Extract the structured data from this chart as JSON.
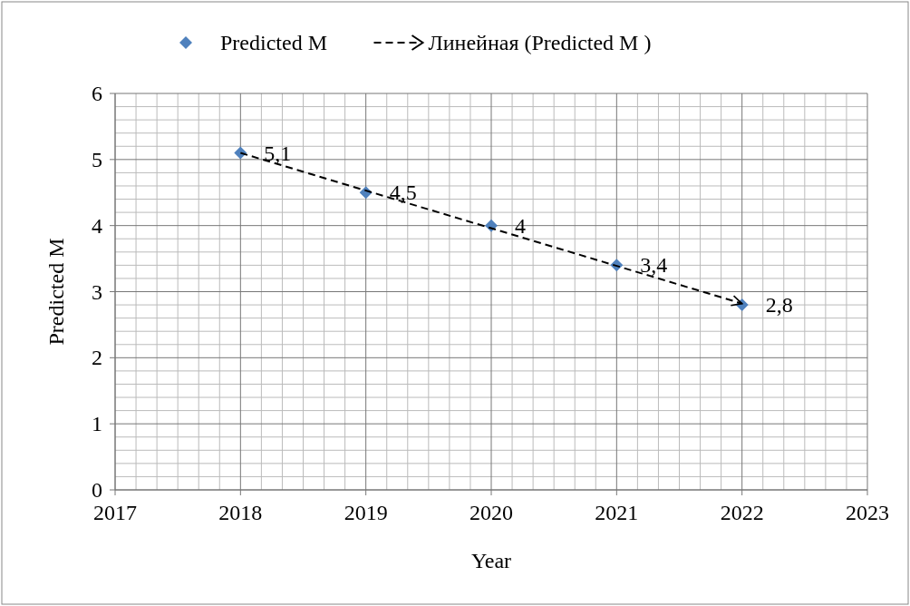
{
  "chart_data": {
    "type": "scatter",
    "xlabel": "Year",
    "ylabel": "Predicted M",
    "x": [
      2018,
      2019,
      2020,
      2021,
      2022
    ],
    "series": [
      {
        "name": "Predicted M",
        "type": "scatter",
        "color": "#4f81bd",
        "marker": "diamond",
        "values": [
          5.1,
          4.5,
          4,
          3.4,
          2.8
        ],
        "value_labels": [
          "5,1",
          "4,5",
          "4",
          "3,4",
          "2,8"
        ]
      },
      {
        "name": "Линейная (Predicted M )",
        "type": "line",
        "color": "#000000",
        "line_style": "dashed",
        "x": [
          2018,
          2022
        ],
        "values": [
          5.1,
          2.82
        ]
      }
    ],
    "xlim": [
      2017,
      2023
    ],
    "xticks": [
      2017,
      2018,
      2019,
      2020,
      2021,
      2022,
      2023
    ],
    "ylim": [
      0,
      6
    ],
    "yticks": [
      0,
      1,
      2,
      3,
      4,
      5,
      6
    ],
    "grid": true,
    "legend": "top"
  }
}
